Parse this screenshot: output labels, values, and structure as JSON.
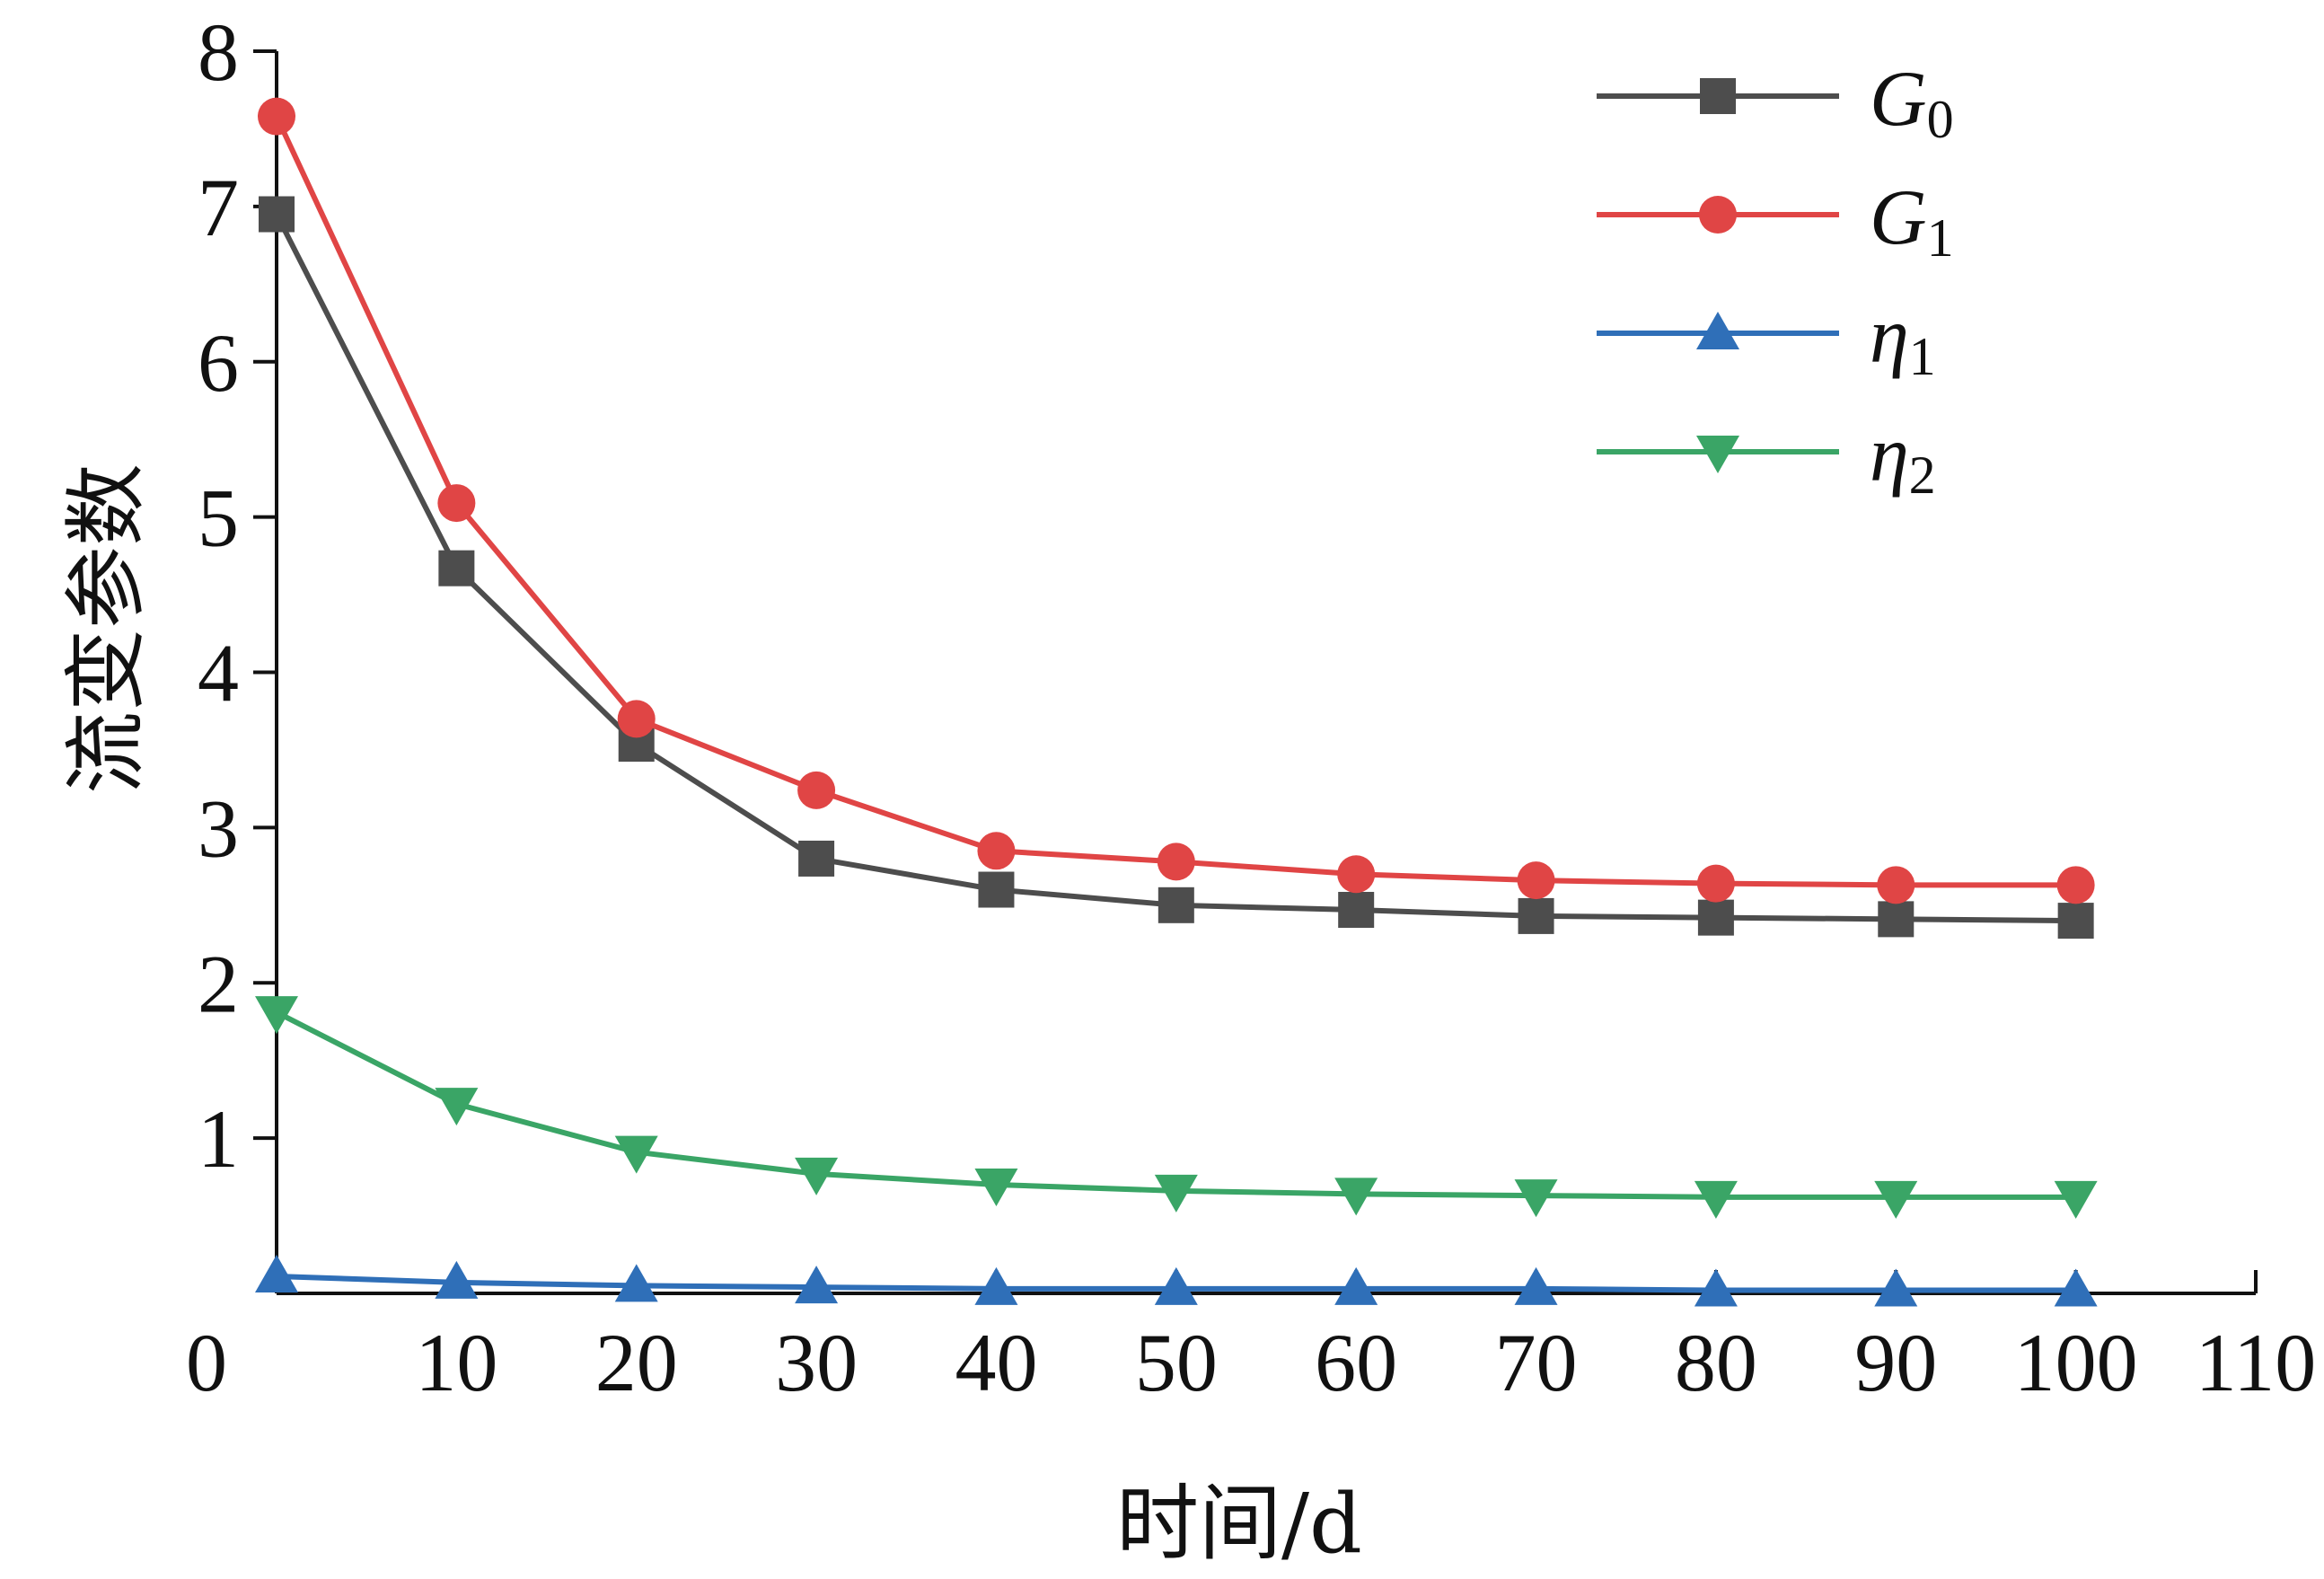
{
  "chart_data": {
    "type": "line",
    "title": "",
    "xlabel": "时间/d",
    "ylabel": "流变参数",
    "xlim": [
      0,
      110
    ],
    "ylim": [
      0,
      8
    ],
    "xticks": [
      0,
      10,
      20,
      30,
      40,
      50,
      60,
      70,
      80,
      90,
      100,
      110
    ],
    "yticks": [
      1,
      2,
      3,
      4,
      5,
      6,
      7,
      8
    ],
    "grid": false,
    "legend_position": "top-right",
    "x": [
      0,
      10,
      20,
      30,
      40,
      50,
      60,
      70,
      80,
      90,
      100
    ],
    "series": [
      {
        "name": "G",
        "subscript": "0",
        "color": "#4d4d4d",
        "marker": "square",
        "values": [
          6.95,
          4.67,
          3.54,
          2.8,
          2.6,
          2.5,
          2.47,
          2.43,
          2.42,
          2.41,
          2.4
        ]
      },
      {
        "name": "G",
        "subscript": "1",
        "color": "#e04545",
        "marker": "circle",
        "values": [
          7.58,
          5.09,
          3.7,
          3.24,
          2.85,
          2.78,
          2.7,
          2.66,
          2.64,
          2.63,
          2.63
        ]
      },
      {
        "name": "η",
        "subscript": "1",
        "color": "#2f6fb8",
        "marker": "triangle-up",
        "values": [
          0.11,
          0.07,
          0.05,
          0.04,
          0.03,
          0.03,
          0.03,
          0.03,
          0.02,
          0.02,
          0.02
        ]
      },
      {
        "name": "η",
        "subscript": "2",
        "color": "#3aa566",
        "marker": "triangle-down",
        "values": [
          1.81,
          1.22,
          0.91,
          0.77,
          0.7,
          0.66,
          0.64,
          0.63,
          0.62,
          0.62,
          0.62
        ]
      }
    ]
  }
}
